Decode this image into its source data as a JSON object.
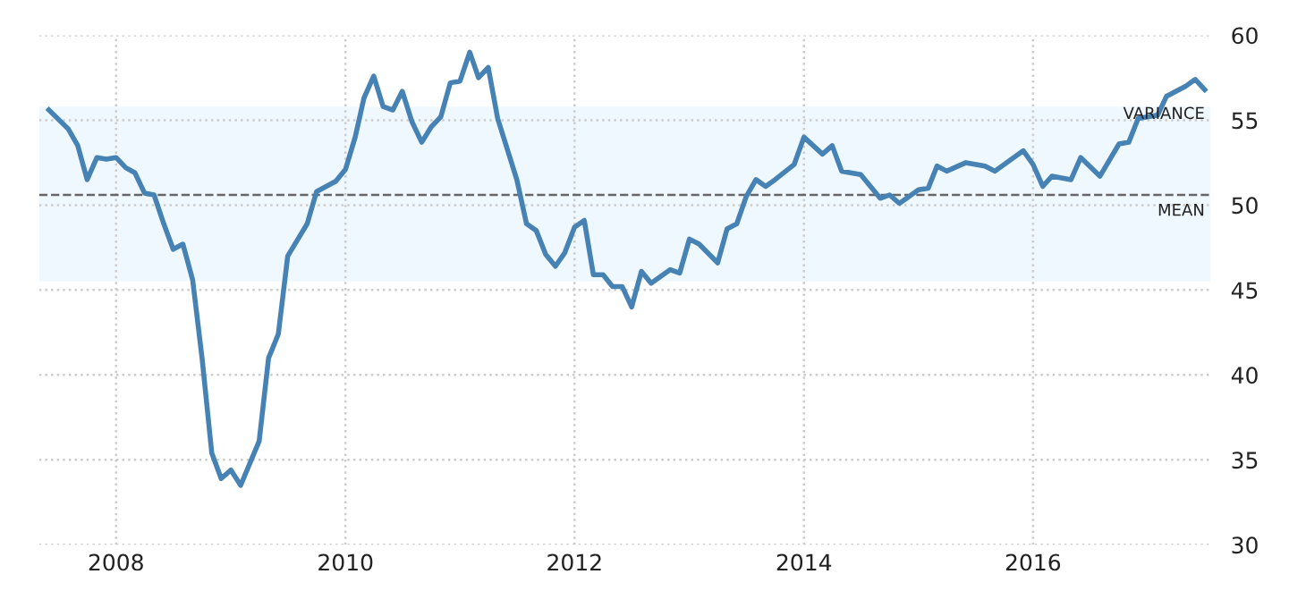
{
  "chart_data": {
    "type": "line",
    "x": [
      "2007-06",
      "2007-08",
      "2007-09",
      "2007-10",
      "2007-11",
      "2007-12",
      "2008-01",
      "2008-02",
      "2008-03",
      "2008-04",
      "2008-05",
      "2008-06",
      "2008-07",
      "2008-08",
      "2008-09",
      "2008-10",
      "2008-11",
      "2008-12",
      "2009-01",
      "2009-02",
      "2009-04",
      "2009-05",
      "2009-06",
      "2009-07",
      "2009-09",
      "2009-10",
      "2009-12",
      "2010-01",
      "2010-02",
      "2010-03",
      "2010-04",
      "2010-05",
      "2010-06",
      "2010-07",
      "2010-08",
      "2010-09",
      "2010-10",
      "2010-11",
      "2010-12",
      "2011-01",
      "2011-02",
      "2011-03",
      "2011-04",
      "2011-05",
      "2011-07",
      "2011-08",
      "2011-09",
      "2011-10",
      "2011-11",
      "2011-12",
      "2012-01",
      "2012-02",
      "2012-03",
      "2012-04",
      "2012-05",
      "2012-06",
      "2012-07",
      "2012-08",
      "2012-09",
      "2012-11",
      "2012-12",
      "2013-01",
      "2013-02",
      "2013-04",
      "2013-05",
      "2013-06",
      "2013-07",
      "2013-08",
      "2013-09",
      "2013-10",
      "2013-12",
      "2014-01",
      "2014-03",
      "2014-04",
      "2014-05",
      "2014-07",
      "2014-09",
      "2014-10",
      "2014-11",
      "2015-01",
      "2015-02",
      "2015-03",
      "2015-04",
      "2015-06",
      "2015-08",
      "2015-09",
      "2015-12",
      "2016-01",
      "2016-02",
      "2016-03",
      "2016-05",
      "2016-06",
      "2016-08",
      "2016-10",
      "2016-11",
      "2016-12",
      "2017-02",
      "2017-03",
      "2017-05",
      "2017-06",
      "2017-07"
    ],
    "series": [
      {
        "color": "#4682b4",
        "values": [
          55.6,
          54.5,
          53.5,
          51.5,
          52.8,
          52.7,
          52.8,
          52.2,
          51.9,
          50.7,
          50.6,
          48.9,
          47.4,
          47.7,
          45.6,
          41.0,
          35.4,
          33.9,
          34.4,
          33.5,
          36.1,
          41.0,
          42.4,
          47.0,
          48.9,
          50.8,
          51.4,
          52.1,
          54.0,
          56.3,
          57.6,
          55.8,
          55.6,
          56.7,
          54.9,
          53.7,
          54.6,
          55.2,
          57.2,
          57.3,
          59.0,
          57.5,
          58.1,
          55.1,
          51.5,
          48.9,
          48.5,
          47.1,
          46.4,
          47.2,
          48.7,
          49.1,
          45.9,
          45.9,
          45.2,
          45.2,
          44.0,
          46.1,
          45.4,
          46.2,
          46.0,
          48.0,
          47.7,
          46.6,
          48.6,
          48.9,
          50.5,
          51.5,
          51.1,
          51.5,
          52.4,
          54.0,
          53.0,
          53.5,
          52.0,
          51.8,
          50.4,
          50.6,
          50.1,
          50.9,
          51.0,
          52.3,
          52.0,
          52.5,
          52.3,
          52.0,
          53.2,
          52.4,
          51.1,
          51.7,
          51.5,
          52.8,
          51.7,
          53.6,
          53.7,
          55.1,
          55.3,
          56.4,
          57.0,
          57.4,
          56.8
        ]
      }
    ],
    "xlim": [
      "2007-05",
      "2017-07-20"
    ],
    "xticks": [
      "2008",
      "2010",
      "2012",
      "2014",
      "2016"
    ],
    "ylim": [
      30,
      60
    ],
    "yticks": [
      30,
      35,
      40,
      45,
      50,
      55,
      60
    ],
    "grid": true,
    "marker": "none",
    "line_style": "solid",
    "ref_lines": [
      {
        "axis": "y",
        "value": 50.6,
        "label": "MEAN",
        "color": "#666666",
        "line_style": "dashed"
      }
    ],
    "bands": [
      {
        "axis": "y",
        "from": 45.5,
        "to": 55.8,
        "label": "VARIANCE",
        "color": "#f0f8ff"
      }
    ]
  }
}
